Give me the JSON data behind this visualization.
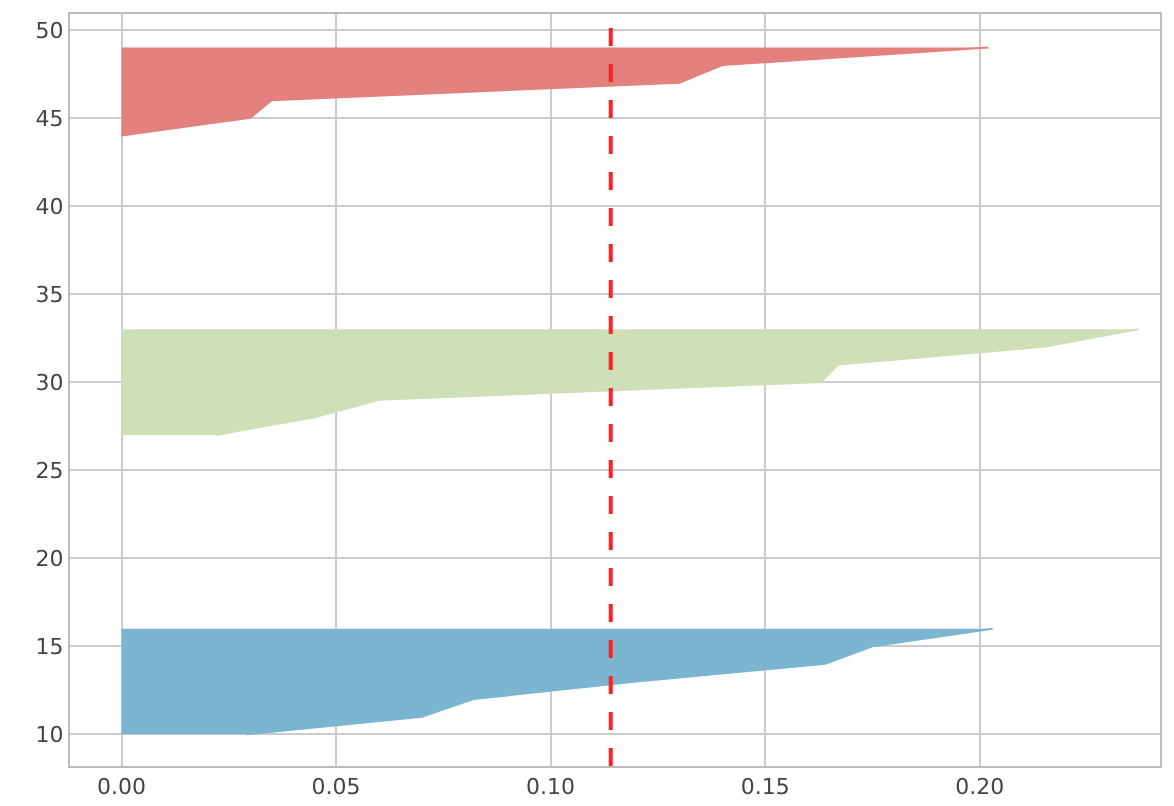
{
  "chart_data": {
    "type": "area",
    "orientation": "horizontal",
    "series": [
      {
        "color": "#7bb5cf",
        "x": [
          10,
          11,
          12,
          13,
          14,
          15,
          16
        ],
        "values": [
          0.029,
          0.07,
          0.082,
          0.12,
          0.164,
          0.175,
          0.203
        ]
      },
      {
        "color": "#cfe0b8",
        "x": [
          27,
          28,
          29,
          30,
          31,
          32,
          33
        ],
        "values": [
          0.022,
          0.045,
          0.06,
          0.163,
          0.167,
          0.215,
          0.237
        ]
      },
      {
        "color": "#e3817e",
        "x": [
          44,
          45,
          46,
          47,
          48,
          49
        ],
        "values": [
          0,
          0.03,
          0.035,
          0.13,
          0.14,
          0.202
        ]
      }
    ],
    "xlim": [
      -0.012,
      0.242
    ],
    "xticks": [
      {
        "value": 0,
        "label": "0.00"
      },
      0.05,
      {
        "value": 0.1,
        "label": "0.10"
      },
      0.15,
      {
        "value": 0.2,
        "label": "0.20"
      }
    ],
    "ylim": [
      8.2,
      50.9
    ],
    "yticks": [
      10,
      15,
      20,
      25,
      30,
      35,
      40,
      45,
      50
    ],
    "ref_lines": [
      {
        "axis": "x",
        "value": 0.114,
        "color": "#ff2020",
        "line_style": "dashed"
      }
    ],
    "grid": true
  }
}
